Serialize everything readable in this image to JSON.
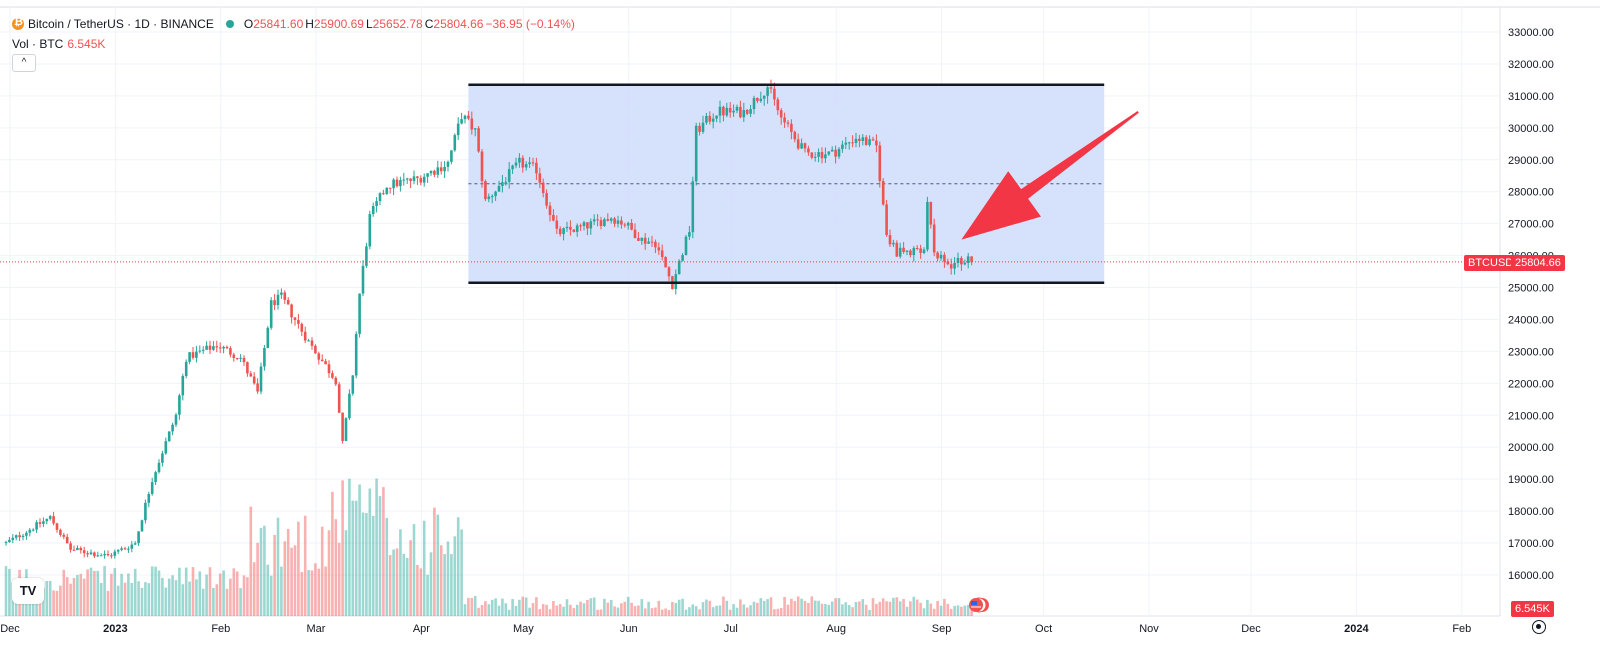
{
  "legend": {
    "symbol": "Bitcoin / TetherUS · 1D · BINANCE",
    "open_label": "O",
    "open": "25841.60",
    "high_label": "H",
    "high": "25900.69",
    "low_label": "L",
    "low": "25652.78",
    "close_label": "C",
    "close": "25804.66",
    "change": "−36.95 (−0.14%)",
    "volume_label": "Vol · BTC",
    "volume_value": "6.545K"
  },
  "colors": {
    "up": "#26a69a",
    "down": "#ef5350",
    "channel_fill": "#cfdcfb",
    "arrow": "#f23645",
    "last_price": "#f23645"
  },
  "icons": {
    "symbol": "bitcoin-icon",
    "collapse": "chevron-up-icon",
    "logo": "tradingview-logo",
    "events": "us-flag-icon",
    "settings": "gear-icon"
  },
  "chart_data": {
    "type": "candlestick",
    "symbol_tag": "BTCUSDT",
    "last_price": 25804.66,
    "last_price_label": "25804.66",
    "volume_tag": "6.545K",
    "y_ticks": [
      "33000.00",
      "32000.00",
      "31000.00",
      "30000.00",
      "29000.00",
      "28000.00",
      "27000.00",
      "26000.00",
      "25000.00",
      "24000.00",
      "23000.00",
      "22000.00",
      "21000.00",
      "20000.00",
      "19000.00",
      "18000.00",
      "17000.00",
      "16000.00"
    ],
    "ylim": [
      15000,
      33000
    ],
    "x_ticks": [
      "Dec",
      "2023",
      "Feb",
      "Mar",
      "Apr",
      "May",
      "Jun",
      "Jul",
      "Aug",
      "Sep",
      "Oct",
      "Nov",
      "Dec",
      "2024",
      "Feb"
    ],
    "x_start": "2022-12-01",
    "channel": {
      "from": "2023-04-16",
      "to": "2023-10-20",
      "upper": 31350,
      "lower": 25150,
      "mid": 28250
    },
    "arrow": {
      "tip": [
        "2023-09-08",
        26500
      ],
      "tail": [
        "2023-10-30",
        30500
      ]
    },
    "series_points": [
      [
        "2022-12-01",
        17000
      ],
      [
        "2022-12-14",
        17800
      ],
      [
        "2022-12-20",
        16800
      ],
      [
        "2022-12-31",
        16600
      ],
      [
        "2023-01-08",
        17000
      ],
      [
        "2023-01-13",
        19000
      ],
      [
        "2023-01-20",
        21000
      ],
      [
        "2023-01-23",
        22800
      ],
      [
        "2023-02-01",
        23200
      ],
      [
        "2023-02-08",
        22800
      ],
      [
        "2023-02-13",
        21700
      ],
      [
        "2023-02-17",
        24500
      ],
      [
        "2023-02-20",
        24700
      ],
      [
        "2023-02-28",
        23300
      ],
      [
        "2023-03-08",
        22100
      ],
      [
        "2023-03-10",
        20100
      ],
      [
        "2023-03-13",
        22300
      ],
      [
        "2023-03-15",
        24800
      ],
      [
        "2023-03-18",
        27200
      ],
      [
        "2023-03-23",
        28200
      ],
      [
        "2023-04-01",
        28400
      ],
      [
        "2023-04-10",
        28900
      ],
      [
        "2023-04-14",
        30400
      ],
      [
        "2023-04-18",
        29900
      ],
      [
        "2023-04-21",
        27700
      ],
      [
        "2023-04-26",
        28300
      ],
      [
        "2023-05-01",
        28900
      ],
      [
        "2023-05-06",
        28700
      ],
      [
        "2023-05-12",
        26700
      ],
      [
        "2023-05-20",
        26900
      ],
      [
        "2023-05-28",
        27200
      ],
      [
        "2023-06-01",
        27000
      ],
      [
        "2023-06-06",
        26500
      ],
      [
        "2023-06-10",
        26400
      ],
      [
        "2023-06-15",
        25100
      ],
      [
        "2023-06-20",
        26800
      ],
      [
        "2023-06-22",
        29900
      ],
      [
        "2023-06-28",
        30500
      ],
      [
        "2023-07-06",
        30500
      ],
      [
        "2023-07-13",
        31300
      ],
      [
        "2023-07-17",
        30300
      ],
      [
        "2023-07-24",
        29200
      ],
      [
        "2023-08-01",
        29200
      ],
      [
        "2023-08-08",
        29700
      ],
      [
        "2023-08-14",
        29400
      ],
      [
        "2023-08-17",
        26600
      ],
      [
        "2023-08-20",
        26100
      ],
      [
        "2023-08-28",
        26100
      ],
      [
        "2023-08-29",
        27700
      ],
      [
        "2023-08-31",
        26000
      ],
      [
        "2023-09-05",
        25700
      ],
      [
        "2023-09-09",
        25900
      ],
      [
        "2023-09-11",
        25800
      ]
    ]
  }
}
